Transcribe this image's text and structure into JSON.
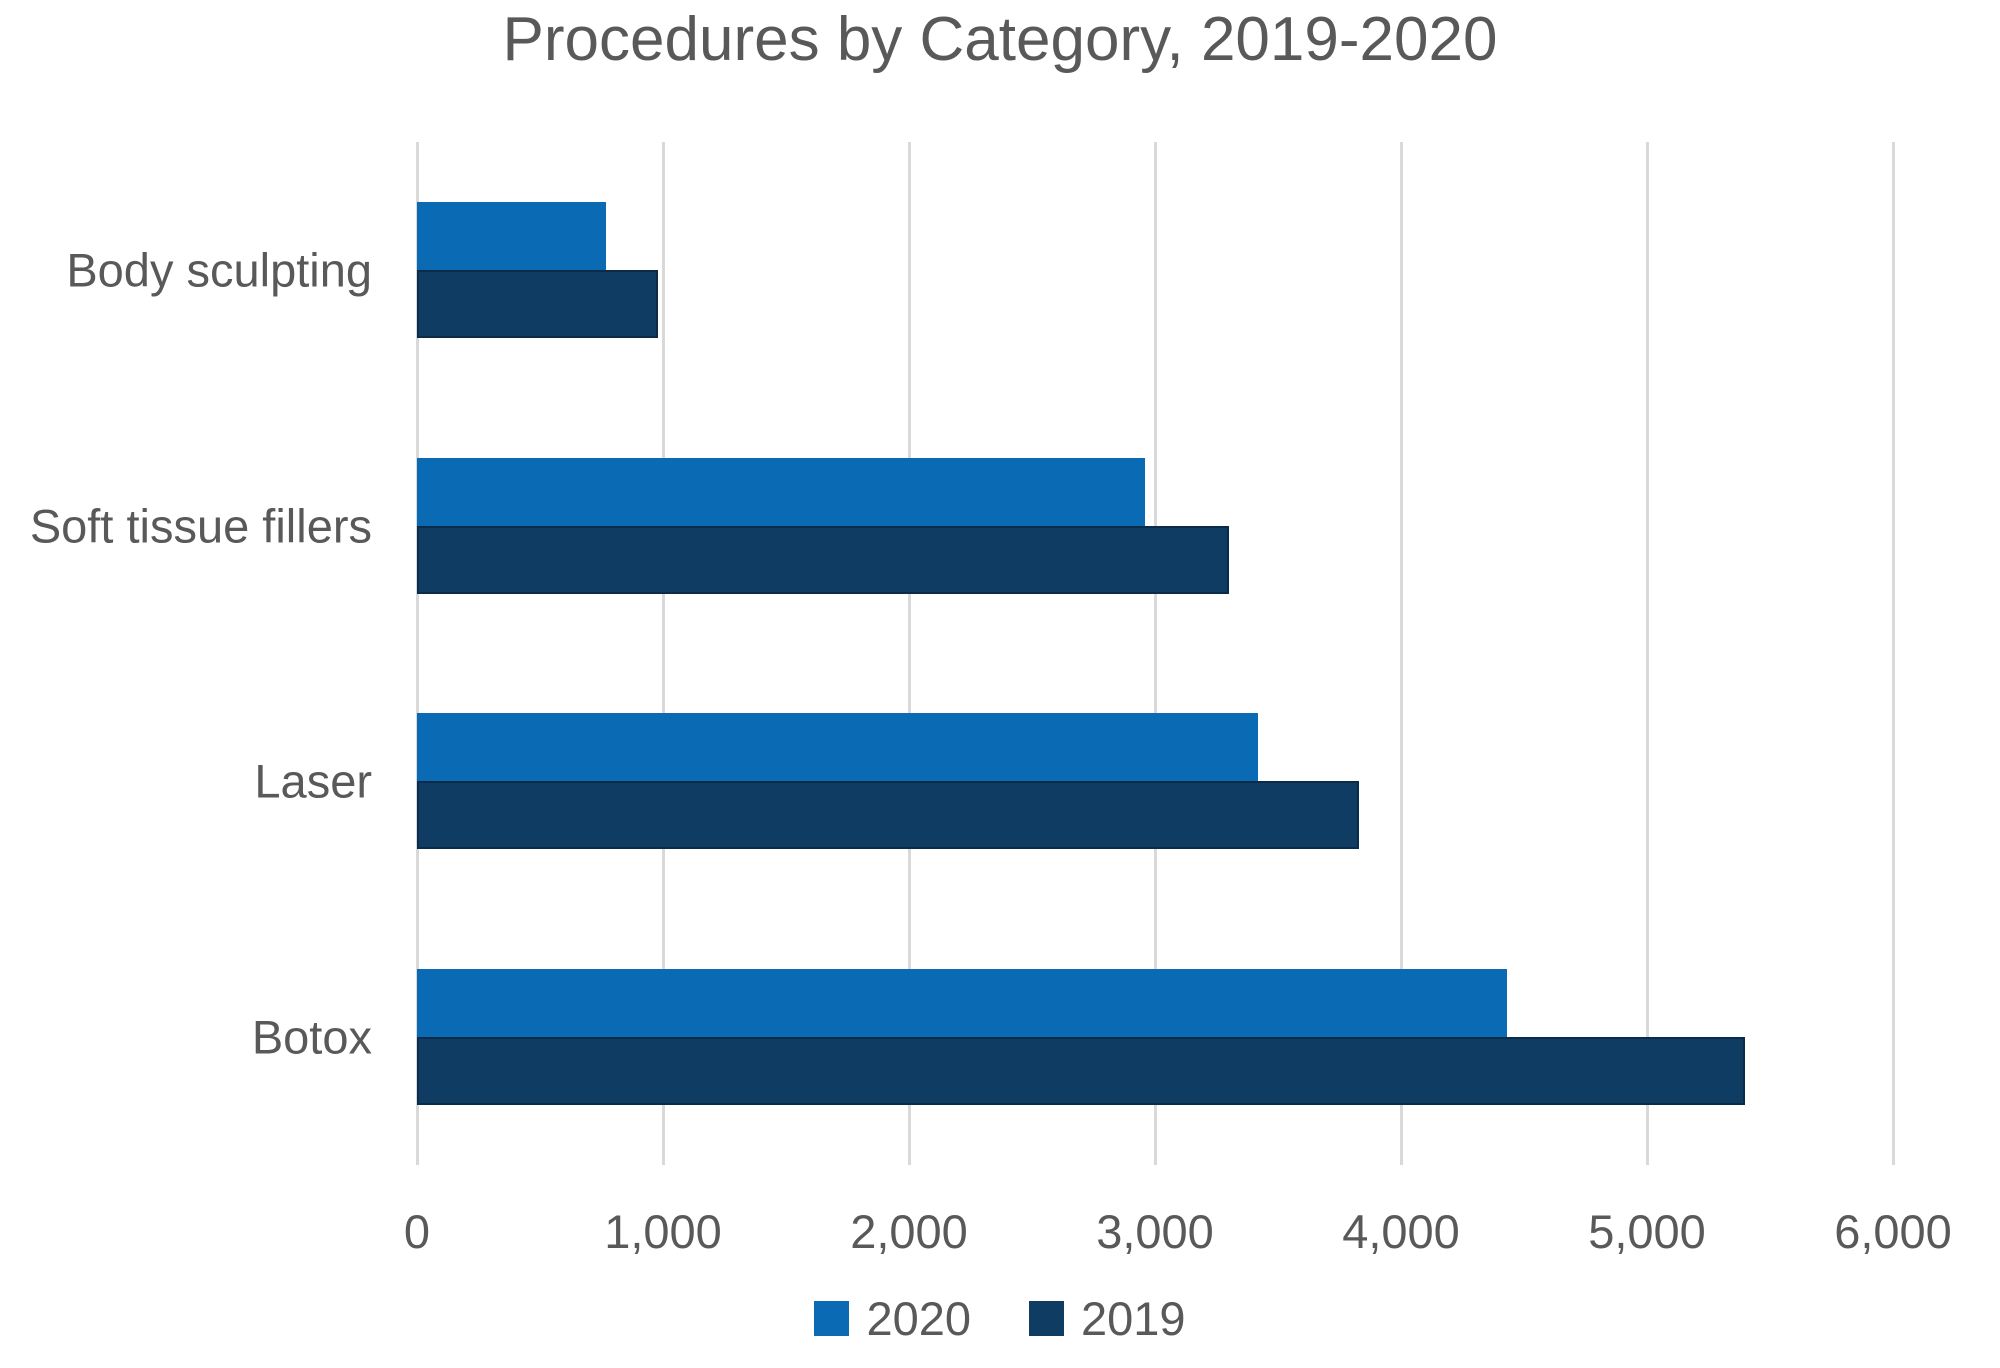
{
  "chart_data": {
    "type": "bar",
    "orientation": "horizontal",
    "title": "Procedures by Category, 2019-2020",
    "categories": [
      "Body sculpting",
      "Soft tissue fillers",
      "Laser",
      "Botox"
    ],
    "series": [
      {
        "name": "2020",
        "color": "#0a6bb4",
        "values": [
          770,
          2960,
          3420,
          4430
        ]
      },
      {
        "name": "2019",
        "color": "#0e3c63",
        "border": "#0a2c49",
        "values": [
          980,
          3300,
          3830,
          5400
        ]
      }
    ],
    "xlabel": "",
    "ylabel": "",
    "xlim": [
      0,
      6000
    ],
    "xticks": {
      "values": [
        0,
        1000,
        2000,
        3000,
        4000,
        5000,
        6000
      ],
      "labels": [
        "0",
        "1,000",
        "2,000",
        "3,000",
        "4,000",
        "5,000",
        "6,000"
      ]
    },
    "grid": "vertical",
    "legend_position": "bottom",
    "colors": {
      "background": "#ffffff",
      "gridline": "#d9d9d9",
      "text": "#595959"
    }
  }
}
